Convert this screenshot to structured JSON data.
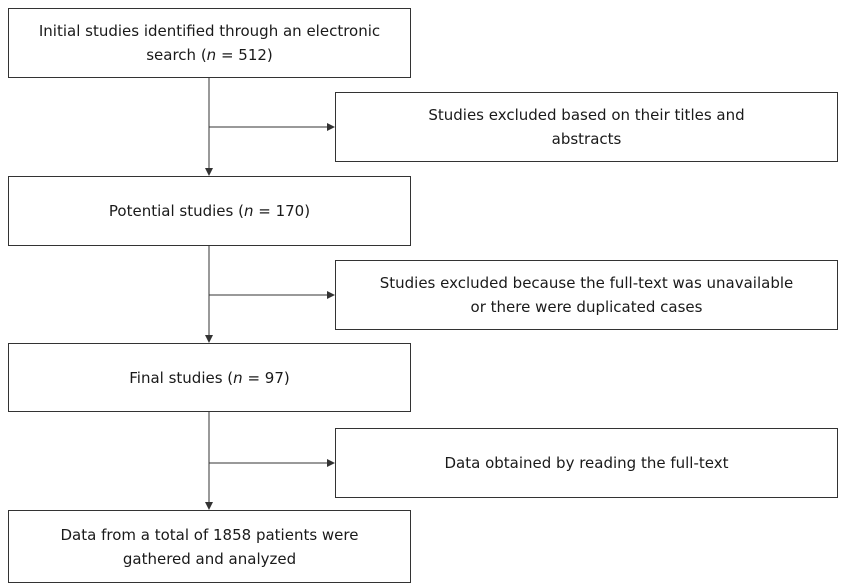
{
  "boxes": {
    "initial": {
      "before_n": "Initial studies identified through an electronic search (",
      "n_symbol": "n",
      "after_n": " = 512)"
    },
    "potential": {
      "before_n": "Potential studies (",
      "n_symbol": "n",
      "after_n": " = 170)"
    },
    "final": {
      "before_n": "Final studies (",
      "n_symbol": "n",
      "after_n": " = 97)"
    },
    "total": {
      "text": "Data from a total of 1858 patients were gathered and analyzed"
    }
  },
  "side_boxes": {
    "excluded_titles": "Studies excluded based on their titles and abstracts",
    "excluded_fulltext": "Studies excluded because the full-text was unavailable or there were duplicated cases",
    "data_obtained": "Data obtained by reading the full-text"
  }
}
